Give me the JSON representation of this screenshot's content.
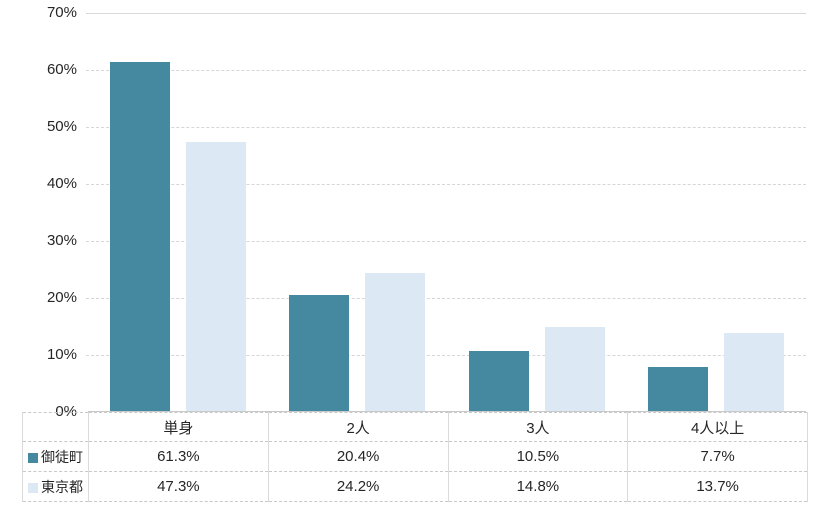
{
  "chart_data": {
    "type": "bar",
    "categories": [
      "単身",
      "2人",
      "3人",
      "4人以上"
    ],
    "series": [
      {
        "name": "御徒町",
        "color": "#4589A1",
        "values": [
          61.3,
          20.4,
          10.5,
          7.7
        ]
      },
      {
        "name": "東京都",
        "color": "#DCE8F4",
        "values": [
          47.3,
          24.2,
          14.8,
          13.7
        ]
      }
    ],
    "title": "",
    "xlabel": "",
    "ylabel": "",
    "ylim": [
      0,
      70
    ],
    "ytick_step": 10,
    "yticks": [
      "0%",
      "10%",
      "20%",
      "30%",
      "40%",
      "50%",
      "60%",
      "70%"
    ],
    "grid": "horizontal-dashed",
    "legend_position": "table-left-column",
    "colors": {
      "gridline": "#d6d6d6",
      "axis_line": "#c9c9c9",
      "table_border": "#dadada",
      "text": "#262626"
    }
  },
  "table": {
    "header": [
      "単身",
      "2人",
      "3人",
      "4人以上"
    ],
    "rows": [
      {
        "label": "御徒町",
        "values": [
          "61.3%",
          "20.4%",
          "10.5%",
          "7.7%"
        ]
      },
      {
        "label": "東京都",
        "values": [
          "47.3%",
          "24.2%",
          "14.8%",
          "13.7%"
        ]
      }
    ]
  }
}
